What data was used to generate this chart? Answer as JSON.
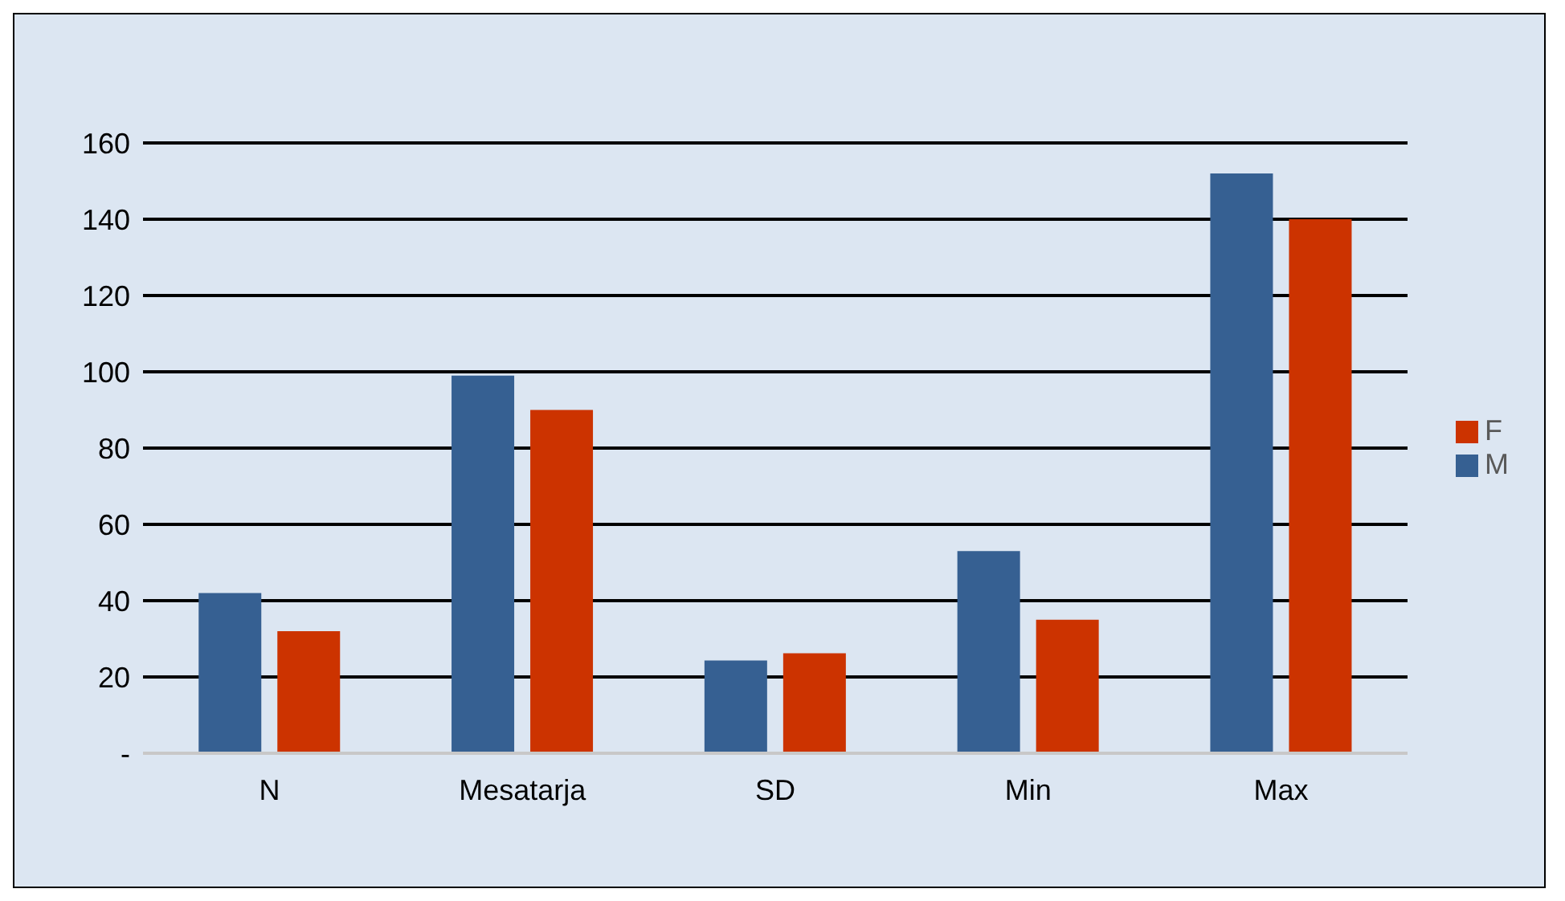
{
  "chart_data": {
    "type": "bar",
    "categories": [
      "N",
      "Mesatarja",
      "SD",
      "Min",
      "Max"
    ],
    "series": [
      {
        "name": "M",
        "color": "#366092",
        "values": [
          42,
          99,
          24.3,
          53,
          152
        ]
      },
      {
        "name": "F",
        "color": "#cc3300",
        "values": [
          32,
          90,
          26.2,
          35,
          140
        ]
      }
    ],
    "ylim": [
      0,
      160
    ],
    "yticks": [
      {
        "value": 0,
        "label": "-"
      },
      20,
      40,
      60,
      80,
      100,
      120,
      140,
      160
    ],
    "grid": "y",
    "legend": "right"
  }
}
